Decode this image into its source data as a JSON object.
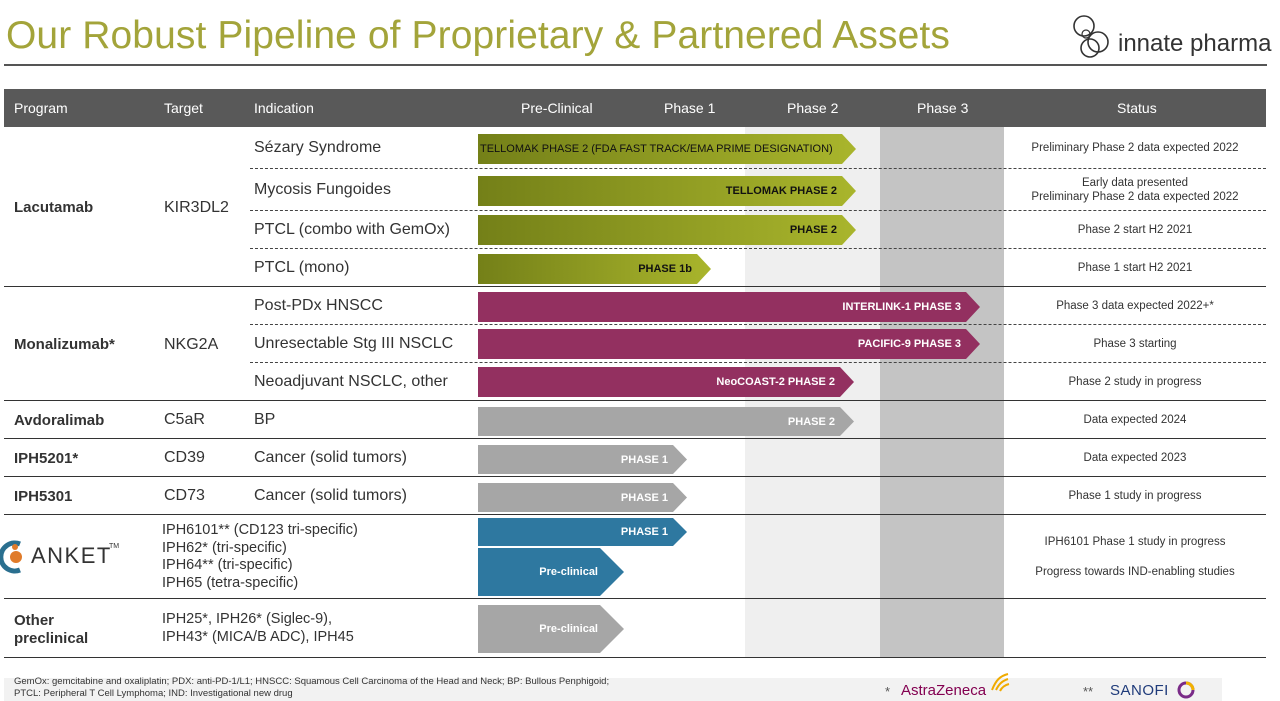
{
  "title": "Our Robust Pipeline of Proprietary & Partnered Assets",
  "logo": {
    "text": "innate pharma"
  },
  "header": {
    "program": "Program",
    "target": "Target",
    "indication": "Indication",
    "preclinical": "Pre-Clinical",
    "phase1": "Phase 1",
    "phase2": "Phase 2",
    "phase3": "Phase 3",
    "status": "Status"
  },
  "rows": {
    "lacutamab": {
      "program": "Lacutamab",
      "target": "KIR3DL2",
      "ind": [
        "Sézary Syndrome",
        "Mycosis Fungoides",
        "PTCL (combo with GemOx)",
        "PTCL (mono)"
      ],
      "bars": [
        "TELLOMAK PHASE 2 (FDA FAST TRACK/EMA PRIME DESIGNATION)",
        "TELLOMAK  PHASE 2",
        "PHASE 2",
        "PHASE 1b"
      ],
      "status": [
        "Preliminary Phase 2 data expected 2022",
        "Early data presented",
        "Preliminary Phase 2 data expected 2022",
        "Phase 2 start H2 2021",
        "Phase 1 start H2 2021"
      ]
    },
    "monalizumab": {
      "program": "Monalizumab*",
      "target": "NKG2A",
      "ind": [
        "Post-PDx HNSCC",
        "Unresectable Stg III NSCLC",
        "Neoadjuvant NSCLC, other"
      ],
      "bars": [
        "INTERLINK-1  PHASE 3",
        "PACIFIC-9  PHASE 3",
        "NeoCOAST-2 PHASE 2"
      ],
      "status": [
        "Phase 3 data expected 2022+*",
        "Phase 3 starting",
        "Phase 2 study in progress"
      ]
    },
    "avdoralimab": {
      "program": "Avdoralimab",
      "target": "C5aR",
      "ind": "BP",
      "bar": "PHASE 2",
      "status": "Data expected 2024"
    },
    "iph5201": {
      "program": "IPH5201*",
      "target": "CD39",
      "ind": "Cancer (solid tumors)",
      "bar": "PHASE 1",
      "status": "Data expected 2023"
    },
    "iph5301": {
      "program": "IPH5301",
      "target": "CD73",
      "ind": "Cancer (solid tumors)",
      "bar": "PHASE 1",
      "status": "Phase 1 study in progress"
    },
    "anket": {
      "logo": "ANKET",
      "tm": "TM",
      "targets": [
        "IPH6101** (CD123 tri-specific)",
        "IPH62* (tri-specific)",
        "IPH64** (tri-specific)",
        "IPH65 (tetra-specific)"
      ],
      "bars": [
        "PHASE 1",
        "Pre-clinical"
      ],
      "status": [
        "IPH6101 Phase 1 study in progress",
        "Progress towards IND-enabling studies"
      ]
    },
    "other": {
      "program1": "Other",
      "program2": "preclinical",
      "targets": [
        "IPH25*, IPH26* (Siglec-9),",
        "IPH43* (MICA/B ADC), IPH45"
      ],
      "bar": "Pre-clinical"
    }
  },
  "footnote": [
    "GemOx: gemcitabine and oxaliplatin; PDX: anti-PD-1/L1; HNSCC: Squamous Cell Carcinoma of the Head and Neck; BP: Bullous Penphigoid;",
    "PTCL: Peripheral T Cell Lymphoma; IND: Investigational new drug"
  ],
  "partners": {
    "az_mark": "*",
    "az": "AstraZeneca",
    "sanofi_mark": "**",
    "sanofi": "SANOFI"
  },
  "colors": {
    "olive": "#8a9a1e",
    "magenta": "#933060",
    "grey": "#a6a6a6",
    "blue": "#2e78a0",
    "title": "#a3a43a"
  }
}
